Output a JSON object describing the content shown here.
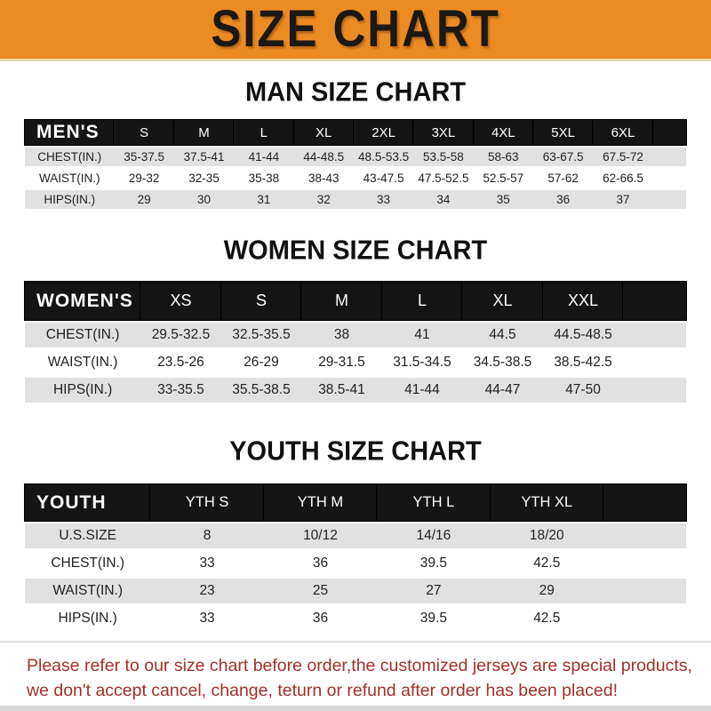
{
  "banner": {
    "title": "SIZE CHART"
  },
  "sections": [
    {
      "title": "MAN SIZE CHART",
      "header_label": "MEN'S",
      "columns": [
        "S",
        "M",
        "L",
        "XL",
        "2XL",
        "3XL",
        "4XL",
        "5XL",
        "6XL"
      ],
      "rows": [
        {
          "label": "CHEST(IN.)",
          "values": [
            "35-37.5",
            "37.5-41",
            "41-44",
            "44-48.5",
            "48.5-53.5",
            "53.5-58",
            "58-63",
            "63-67.5",
            "67.5-72"
          ]
        },
        {
          "label": "WAIST(IN.)",
          "values": [
            "29-32",
            "32-35",
            "35-38",
            "38-43",
            "43-47.5",
            "47.5-52.5",
            "52.5-57",
            "57-62",
            "62-66.5"
          ]
        },
        {
          "label": "HIPS(IN.)",
          "values": [
            "29",
            "30",
            "31",
            "32",
            "33",
            "34",
            "35",
            "36",
            "37"
          ]
        }
      ]
    },
    {
      "title": "WOMEN SIZE CHART",
      "header_label": "WOMEN'S",
      "columns": [
        "XS",
        "S",
        "M",
        "L",
        "XL",
        "XXL"
      ],
      "rows": [
        {
          "label": "CHEST(IN.)",
          "values": [
            "29.5-32.5",
            "32.5-35.5",
            "38",
            "41",
            "44.5",
            "44.5-48.5"
          ]
        },
        {
          "label": "WAIST(IN.)",
          "values": [
            "23.5-26",
            "26-29",
            "29-31.5",
            "31.5-34.5",
            "34.5-38.5",
            "38.5-42.5"
          ]
        },
        {
          "label": "HIPS(IN.)",
          "values": [
            "33-35.5",
            "35.5-38.5",
            "38.5-41",
            "41-44",
            "44-47",
            "47-50"
          ]
        }
      ]
    },
    {
      "title": "YOUTH SIZE CHART",
      "header_label": "YOUTH",
      "columns": [
        "YTH S",
        "YTH M",
        "YTH L",
        "YTH XL"
      ],
      "rows": [
        {
          "label": "U.S.SIZE",
          "values": [
            "8",
            "10/12",
            "14/16",
            "18/20"
          ]
        },
        {
          "label": "CHEST(IN.)",
          "values": [
            "33",
            "36",
            "39.5",
            "42.5"
          ]
        },
        {
          "label": "WAIST(IN.)",
          "values": [
            "23",
            "25",
            "27",
            "29"
          ]
        },
        {
          "label": "HIPS(IN.)",
          "values": [
            "33",
            "36",
            "39.5",
            "42.5"
          ]
        }
      ]
    }
  ],
  "footer": {
    "line1": "Please refer to our size chart before order,the customized jerseys are special products,",
    "line2": "we don't accept cancel, change, teturn or refund after order has been placed!"
  },
  "colors": {
    "banner_bg": "#ED8B23",
    "bar_bg": "#141414",
    "row_alt_bg": "#E1E1E1",
    "footer_text": "#A33028"
  }
}
